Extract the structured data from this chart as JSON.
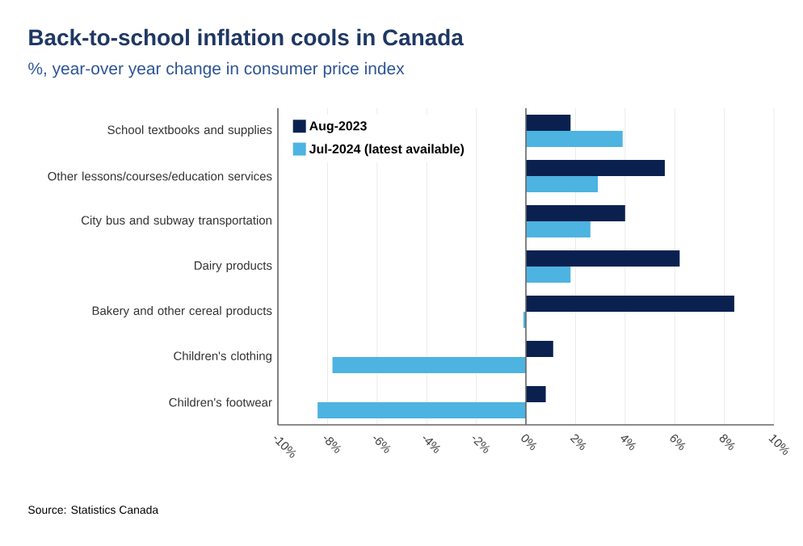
{
  "chart_data": {
    "type": "bar",
    "orientation": "horizontal",
    "title": "Back-to-school inflation cools in Canada",
    "subtitle": "%, year-over year change in consumer price index",
    "categories": [
      "School textbooks and supplies",
      "Other lessons/courses/education services",
      "City bus and subway transportation",
      "Dairy products",
      "Bakery and other cereal products",
      "Children's clothing",
      "Children's footwear"
    ],
    "series": [
      {
        "name": "Aug-2023",
        "color": "#0a2150",
        "values": [
          1.8,
          5.6,
          4.0,
          6.2,
          8.4,
          1.1,
          0.8
        ]
      },
      {
        "name": "Jul-2024 (latest available)",
        "color": "#4db3e0",
        "values": [
          3.9,
          2.9,
          2.6,
          1.8,
          -0.1,
          -7.8,
          -8.4
        ]
      }
    ],
    "xlim": [
      -10,
      10
    ],
    "xticks": [
      {
        "value": -10,
        "label": "-10%"
      },
      {
        "value": -8,
        "label": "-8%"
      },
      {
        "value": -6,
        "label": "-6%"
      },
      {
        "value": -4,
        "label": "-4%"
      },
      {
        "value": -2,
        "label": "-2%"
      },
      {
        "value": 0,
        "label": "0%"
      },
      {
        "value": 2,
        "label": "2%"
      },
      {
        "value": 4,
        "label": "4%"
      },
      {
        "value": 6,
        "label": "6%"
      },
      {
        "value": 8,
        "label": "8%"
      },
      {
        "value": 10,
        "label": "10%"
      }
    ],
    "grid": "x",
    "legend": "top left",
    "annotations": [
      "Source: Statistics Canada"
    ]
  }
}
